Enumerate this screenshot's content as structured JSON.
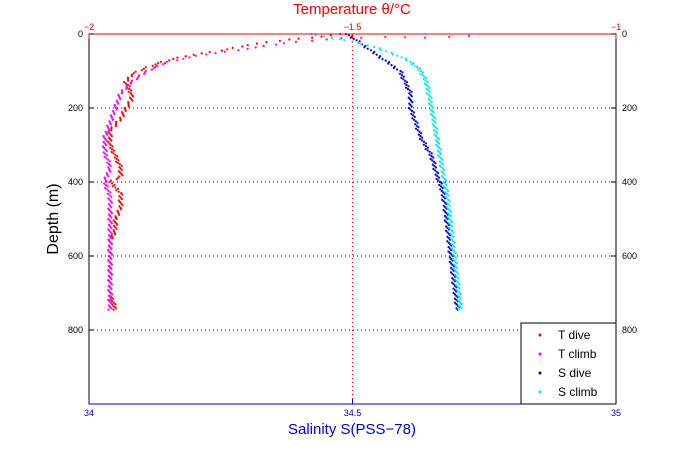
{
  "chart_data": {
    "type": "scatter",
    "top_axis": {
      "label": "Temperature θ/°C",
      "range": [
        -2,
        -1
      ],
      "ticks": [
        "−2",
        "−1.5",
        "−1"
      ],
      "color": "#ff0000"
    },
    "bottom_axis": {
      "label": "Salinity S(PSS−78)",
      "range": [
        34,
        35
      ],
      "ticks": [
        "34",
        "34.5",
        "35"
      ],
      "color": "#0000cc"
    },
    "y_axis": {
      "label": "Depth (m)",
      "range": [
        1000,
        0
      ],
      "ticks": [
        "0",
        "200",
        "400",
        "600",
        "800"
      ],
      "color": "#000000"
    },
    "grid": "dotted",
    "legend_position": "bottom-right",
    "series": [
      {
        "name": "T dive",
        "axis": "temperature",
        "color": "#ff0000",
        "points": [
          [
            -1.52,
            0
          ],
          [
            -1.58,
            10
          ],
          [
            -1.62,
            15
          ],
          [
            -1.66,
            22
          ],
          [
            -1.7,
            30
          ],
          [
            -1.75,
            45
          ],
          [
            -1.82,
            60
          ],
          [
            -1.86,
            75
          ],
          [
            -1.89,
            90
          ],
          [
            -1.92,
            110
          ],
          [
            -1.93,
            130
          ],
          [
            -1.92,
            160
          ],
          [
            -1.92,
            180
          ],
          [
            -1.93,
            200
          ],
          [
            -1.94,
            230
          ],
          [
            -1.96,
            260
          ],
          [
            -1.96,
            300
          ],
          [
            -1.95,
            330
          ],
          [
            -1.94,
            360
          ],
          [
            -1.94,
            385
          ],
          [
            -1.96,
            400
          ],
          [
            -1.94,
            430
          ],
          [
            -1.94,
            470
          ],
          [
            -1.95,
            500
          ],
          [
            -1.95,
            530
          ],
          [
            -1.96,
            560
          ],
          [
            -1.96,
            600
          ],
          [
            -1.96,
            650
          ],
          [
            -1.96,
            700
          ],
          [
            -1.95,
            745
          ]
        ]
      },
      {
        "name": "T climb",
        "axis": "temperature",
        "color": "#ff00ff",
        "points": [
          [
            -1.28,
            5
          ],
          [
            -1.36,
            10
          ],
          [
            -1.44,
            8
          ],
          [
            -1.52,
            12
          ],
          [
            -1.58,
            18
          ],
          [
            -1.63,
            25
          ],
          [
            -1.7,
            40
          ],
          [
            -1.78,
            55
          ],
          [
            -1.85,
            75
          ],
          [
            -1.89,
            100
          ],
          [
            -1.92,
            130
          ],
          [
            -1.94,
            160
          ],
          [
            -1.95,
            200
          ],
          [
            -1.96,
            240
          ],
          [
            -1.97,
            280
          ],
          [
            -1.97,
            320
          ],
          [
            -1.96,
            360
          ],
          [
            -1.97,
            400
          ],
          [
            -1.96,
            440
          ],
          [
            -1.96,
            480
          ],
          [
            -1.96,
            520
          ],
          [
            -1.96,
            560
          ],
          [
            -1.96,
            600
          ],
          [
            -1.96,
            650
          ],
          [
            -1.96,
            700
          ],
          [
            -1.96,
            745
          ]
        ]
      },
      {
        "name": "S dive",
        "axis": "salinity",
        "color": "#0000cc",
        "points": [
          [
            34.49,
            0
          ],
          [
            34.5,
            10
          ],
          [
            34.51,
            20
          ],
          [
            34.53,
            40
          ],
          [
            34.55,
            60
          ],
          [
            34.57,
            80
          ],
          [
            34.59,
            100
          ],
          [
            34.6,
            130
          ],
          [
            34.61,
            160
          ],
          [
            34.61,
            200
          ],
          [
            34.62,
            240
          ],
          [
            34.63,
            280
          ],
          [
            34.65,
            330
          ],
          [
            34.66,
            380
          ],
          [
            34.67,
            420
          ],
          [
            34.675,
            460
          ],
          [
            34.68,
            520
          ],
          [
            34.685,
            580
          ],
          [
            34.69,
            640
          ],
          [
            34.695,
            700
          ],
          [
            34.7,
            745
          ]
        ]
      },
      {
        "name": "S climb",
        "axis": "salinity",
        "color": "#00e5ee",
        "points": [
          [
            34.42,
            0
          ],
          [
            34.46,
            10
          ],
          [
            34.5,
            20
          ],
          [
            34.54,
            35
          ],
          [
            34.58,
            55
          ],
          [
            34.61,
            75
          ],
          [
            34.63,
            100
          ],
          [
            34.64,
            130
          ],
          [
            34.645,
            160
          ],
          [
            34.65,
            200
          ],
          [
            34.655,
            240
          ],
          [
            34.66,
            280
          ],
          [
            34.665,
            320
          ],
          [
            34.67,
            360
          ],
          [
            34.675,
            400
          ],
          [
            34.68,
            440
          ],
          [
            34.685,
            500
          ],
          [
            34.69,
            560
          ],
          [
            34.695,
            620
          ],
          [
            34.7,
            680
          ],
          [
            34.705,
            745
          ]
        ]
      }
    ]
  }
}
